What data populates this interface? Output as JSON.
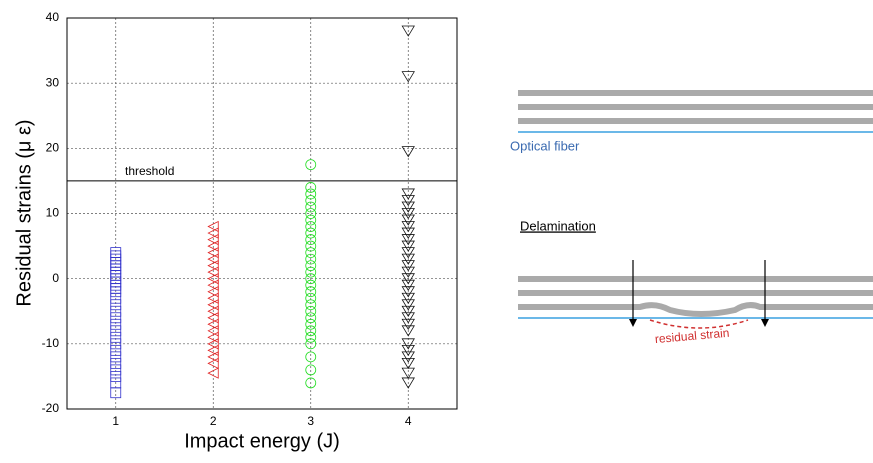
{
  "chart_data": {
    "type": "scatter",
    "xlabel": "Impact energy (J)",
    "ylabel": "Residual strains (μ ε)",
    "xlim": [
      0.5,
      4.5
    ],
    "ylim": [
      -20,
      40
    ],
    "xticks": [
      1,
      2,
      3,
      4
    ],
    "yticks": [
      -20,
      -10,
      0,
      10,
      20,
      30,
      40
    ],
    "grid": true,
    "annotations": [
      {
        "text": "threshold",
        "y": 15
      }
    ],
    "series": [
      {
        "color": "#3333cc",
        "marker": "square",
        "x": [
          1,
          1,
          1,
          1,
          1,
          1,
          1,
          1,
          1,
          1,
          1,
          1,
          1,
          1,
          1,
          1,
          1,
          1,
          1,
          1,
          1,
          1,
          1,
          1,
          1,
          1,
          1,
          1
        ],
        "values": [
          4,
          3.5,
          3,
          2.5,
          2,
          1.5,
          1,
          0.5,
          0,
          -0.5,
          -1,
          -1.5,
          -2,
          -3,
          -4,
          -5,
          -6,
          -7,
          -8,
          -9,
          -10,
          -11,
          -12,
          -13,
          -14,
          -15,
          -16,
          -17.5
        ]
      },
      {
        "color": "#e02020",
        "marker": "triangle-left",
        "x": [
          2,
          2,
          2,
          2,
          2,
          2,
          2,
          2,
          2,
          2,
          2,
          2,
          2,
          2,
          2,
          2,
          2,
          2,
          2,
          2,
          2,
          2,
          2
        ],
        "values": [
          8,
          7,
          6,
          5,
          4,
          3,
          2,
          1,
          0,
          -1,
          -2,
          -3,
          -4,
          -5,
          -6,
          -7,
          -8,
          -9,
          -10,
          -11,
          -12,
          -13,
          -14.5
        ]
      },
      {
        "color": "#22dd22",
        "marker": "circle",
        "x": [
          3,
          3,
          3,
          3,
          3,
          3,
          3,
          3,
          3,
          3,
          3,
          3,
          3,
          3,
          3,
          3,
          3,
          3,
          3,
          3,
          3,
          3,
          3,
          3,
          3,
          3,
          3,
          3,
          3
        ],
        "values": [
          17.5,
          14,
          13,
          12,
          11,
          10,
          9,
          8,
          7,
          6,
          5,
          4,
          3,
          2,
          1,
          0,
          -1,
          -2,
          -3,
          -4,
          -5,
          -6,
          -7,
          -8,
          -9,
          -10,
          -12,
          -14,
          -16
        ]
      },
      {
        "color": "#111111",
        "marker": "triangle-down",
        "x": [
          4,
          4,
          4,
          4,
          4,
          4,
          4,
          4,
          4,
          4,
          4,
          4,
          4,
          4,
          4,
          4,
          4,
          4,
          4,
          4,
          4,
          4,
          4,
          4,
          4,
          4,
          4,
          4,
          4,
          4,
          4
        ],
        "values": [
          38,
          31,
          19.5,
          13,
          12,
          11,
          10,
          9,
          8,
          7,
          6,
          5,
          4,
          3,
          2,
          1,
          0,
          -1,
          -2,
          -3,
          -4,
          -5,
          -6,
          -7,
          -8,
          -10,
          -11,
          -12,
          -13,
          -14.5,
          -16
        ]
      }
    ]
  },
  "diagram": {
    "fiber_label": "Optical fiber",
    "delamination_label": "Delamination",
    "strain_label": "residual strain"
  }
}
